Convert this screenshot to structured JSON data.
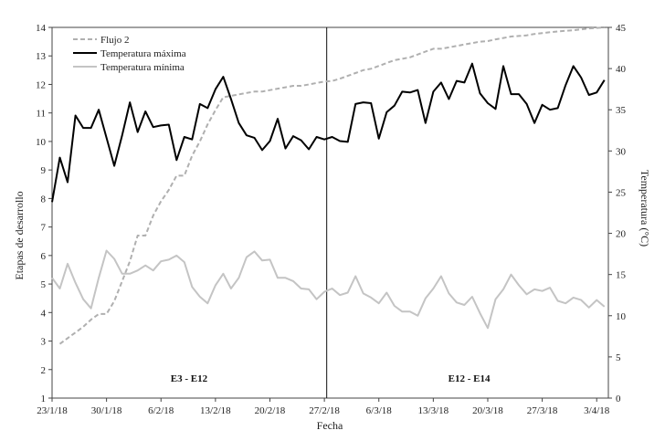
{
  "chart_data": {
    "type": "line",
    "xlabel": "Fecha",
    "ylabel_left": "Etapas de desarrollo",
    "ylabel_right": "Temperatura (°C)",
    "ylim_left": [
      1,
      14
    ],
    "ylim_right": [
      0,
      45
    ],
    "y_ticks_left": [
      1,
      2,
      3,
      4,
      5,
      6,
      7,
      8,
      9,
      10,
      11,
      12,
      13,
      14
    ],
    "y_ticks_right": [
      0,
      5,
      10,
      15,
      20,
      25,
      30,
      35,
      40,
      45
    ],
    "x_ticks": [
      {
        "day": 0,
        "label": "23/1/18"
      },
      {
        "day": 7,
        "label": "30/1/18"
      },
      {
        "day": 14,
        "label": "6/2/18"
      },
      {
        "day": 21,
        "label": "13/2/18"
      },
      {
        "day": 28,
        "label": "20/2/18"
      },
      {
        "day": 35,
        "label": "27/2/18"
      },
      {
        "day": 42,
        "label": "6/3/18"
      },
      {
        "day": 49,
        "label": "13/3/18"
      },
      {
        "day": 56,
        "label": "20/3/18"
      },
      {
        "day": 63,
        "label": "27/3/18"
      },
      {
        "day": 70,
        "label": "3/4/18"
      }
    ],
    "x_range_days": [
      0,
      71.5
    ],
    "grid": false,
    "legend_position": "top-left",
    "divider": {
      "day": 35.3
    },
    "periods": [
      {
        "label": "E3 - E12",
        "day_center": 17.6,
        "y_left": 1.7
      },
      {
        "label": "E12 - E14",
        "day_center": 53.6,
        "y_left": 1.7
      }
    ],
    "series": [
      {
        "name": "Flujo 2",
        "axis": "left",
        "color": "#b0b0b0",
        "dash": "5,3",
        "x": [
          1,
          2,
          3,
          4,
          5,
          6,
          7,
          8,
          9,
          10,
          11,
          12,
          13,
          14,
          15,
          16,
          17,
          18,
          19,
          20,
          21,
          22,
          23,
          24,
          25,
          26,
          27,
          28,
          29,
          30,
          31,
          32,
          33,
          34,
          35,
          36,
          37,
          38,
          39,
          40,
          41,
          42,
          43,
          44,
          45,
          46,
          47,
          48,
          49,
          50,
          51,
          52,
          53,
          54,
          55,
          56,
          57,
          58,
          59,
          60,
          61,
          62,
          63,
          64,
          65,
          66,
          67,
          68,
          69,
          70,
          71
        ],
        "y": [
          2.9,
          3.1,
          3.3,
          3.5,
          3.75,
          3.95,
          3.95,
          4.4,
          5.1,
          5.8,
          6.7,
          6.7,
          7.4,
          7.9,
          8.3,
          8.8,
          8.8,
          9.5,
          10.0,
          10.6,
          11.1,
          11.55,
          11.6,
          11.65,
          11.7,
          11.75,
          11.75,
          11.8,
          11.85,
          11.9,
          11.95,
          11.95,
          12.0,
          12.05,
          12.1,
          12.12,
          12.2,
          12.3,
          12.4,
          12.5,
          12.55,
          12.65,
          12.75,
          12.85,
          12.9,
          12.95,
          13.05,
          13.15,
          13.25,
          13.25,
          13.3,
          13.35,
          13.4,
          13.45,
          13.5,
          13.52,
          13.58,
          13.63,
          13.68,
          13.7,
          13.72,
          13.77,
          13.8,
          13.83,
          13.86,
          13.88,
          13.9,
          13.93,
          13.96,
          13.98,
          14.0
        ]
      },
      {
        "name": "Temperatura máxima",
        "axis": "right",
        "color": "#000000",
        "dash": "",
        "x": [
          0,
          1,
          2,
          3,
          4,
          5,
          6,
          7,
          8,
          9,
          10,
          11,
          12,
          13,
          14,
          15,
          16,
          17,
          18,
          19,
          20,
          21,
          22,
          23,
          24,
          25,
          26,
          27,
          28,
          29,
          30,
          31,
          32,
          33,
          34,
          35,
          36,
          37,
          38,
          39,
          40,
          41,
          42,
          43,
          44,
          45,
          46,
          47,
          48,
          49,
          50,
          51,
          52,
          53,
          54,
          55,
          56,
          57,
          58,
          59,
          60,
          61,
          62,
          63,
          64,
          65,
          66,
          67,
          68,
          69,
          70,
          71
        ],
        "y": [
          23.8,
          29.2,
          26.2,
          34.3,
          32.8,
          32.8,
          35.0,
          31.6,
          28.2,
          31.9,
          35.9,
          32.3,
          34.8,
          32.9,
          33.1,
          33.2,
          28.9,
          31.7,
          31.4,
          35.7,
          35.2,
          37.5,
          39.0,
          36.3,
          33.4,
          31.9,
          31.6,
          30.1,
          31.2,
          33.9,
          30.3,
          31.8,
          31.3,
          30.2,
          31.7,
          31.4,
          31.7,
          31.2,
          31.1,
          35.7,
          35.9,
          35.8,
          31.5,
          34.7,
          35.5,
          37.2,
          37.1,
          37.4,
          33.4,
          37.2,
          38.3,
          36.3,
          38.5,
          38.3,
          40.6,
          37.0,
          35.8,
          35.1,
          40.3,
          36.9,
          36.9,
          35.7,
          33.4,
          35.6,
          35.0,
          35.2,
          38.0,
          40.3,
          38.9,
          36.8,
          37.1,
          38.6
        ]
      },
      {
        "name": "Temperatura mínima",
        "axis": "right",
        "color": "#c4c4c4",
        "dash": "",
        "x": [
          0,
          1,
          2,
          3,
          4,
          5,
          6,
          7,
          8,
          9,
          10,
          11,
          12,
          13,
          14,
          15,
          16,
          17,
          18,
          19,
          20,
          21,
          22,
          23,
          24,
          25,
          26,
          27,
          28,
          29,
          30,
          31,
          32,
          33,
          34,
          35,
          36,
          37,
          38,
          39,
          40,
          41,
          42,
          43,
          44,
          45,
          46,
          47,
          48,
          49,
          50,
          51,
          52,
          53,
          54,
          55,
          56,
          57,
          58,
          59,
          60,
          61,
          62,
          63,
          64,
          65,
          66,
          67,
          68,
          69,
          70,
          71
        ],
        "y": [
          14.6,
          13.3,
          16.3,
          14.0,
          12.0,
          10.9,
          14.6,
          17.9,
          16.9,
          15.1,
          15.1,
          15.5,
          16.1,
          15.5,
          16.6,
          16.8,
          17.3,
          16.5,
          13.5,
          12.3,
          11.5,
          13.7,
          15.1,
          13.3,
          14.6,
          17.1,
          17.8,
          16.7,
          16.8,
          14.6,
          14.6,
          14.2,
          13.3,
          13.2,
          12.0,
          12.9,
          13.3,
          12.5,
          12.8,
          14.8,
          12.7,
          12.2,
          11.5,
          12.8,
          11.2,
          10.5,
          10.5,
          10.0,
          12.1,
          13.3,
          14.8,
          12.7,
          11.6,
          11.3,
          12.3,
          10.3,
          8.5,
          12.0,
          13.2,
          15.0,
          13.7,
          12.6,
          13.2,
          13.0,
          13.4,
          11.8,
          11.5,
          12.2,
          11.9,
          11.0,
          11.9,
          11.1
        ]
      }
    ]
  }
}
